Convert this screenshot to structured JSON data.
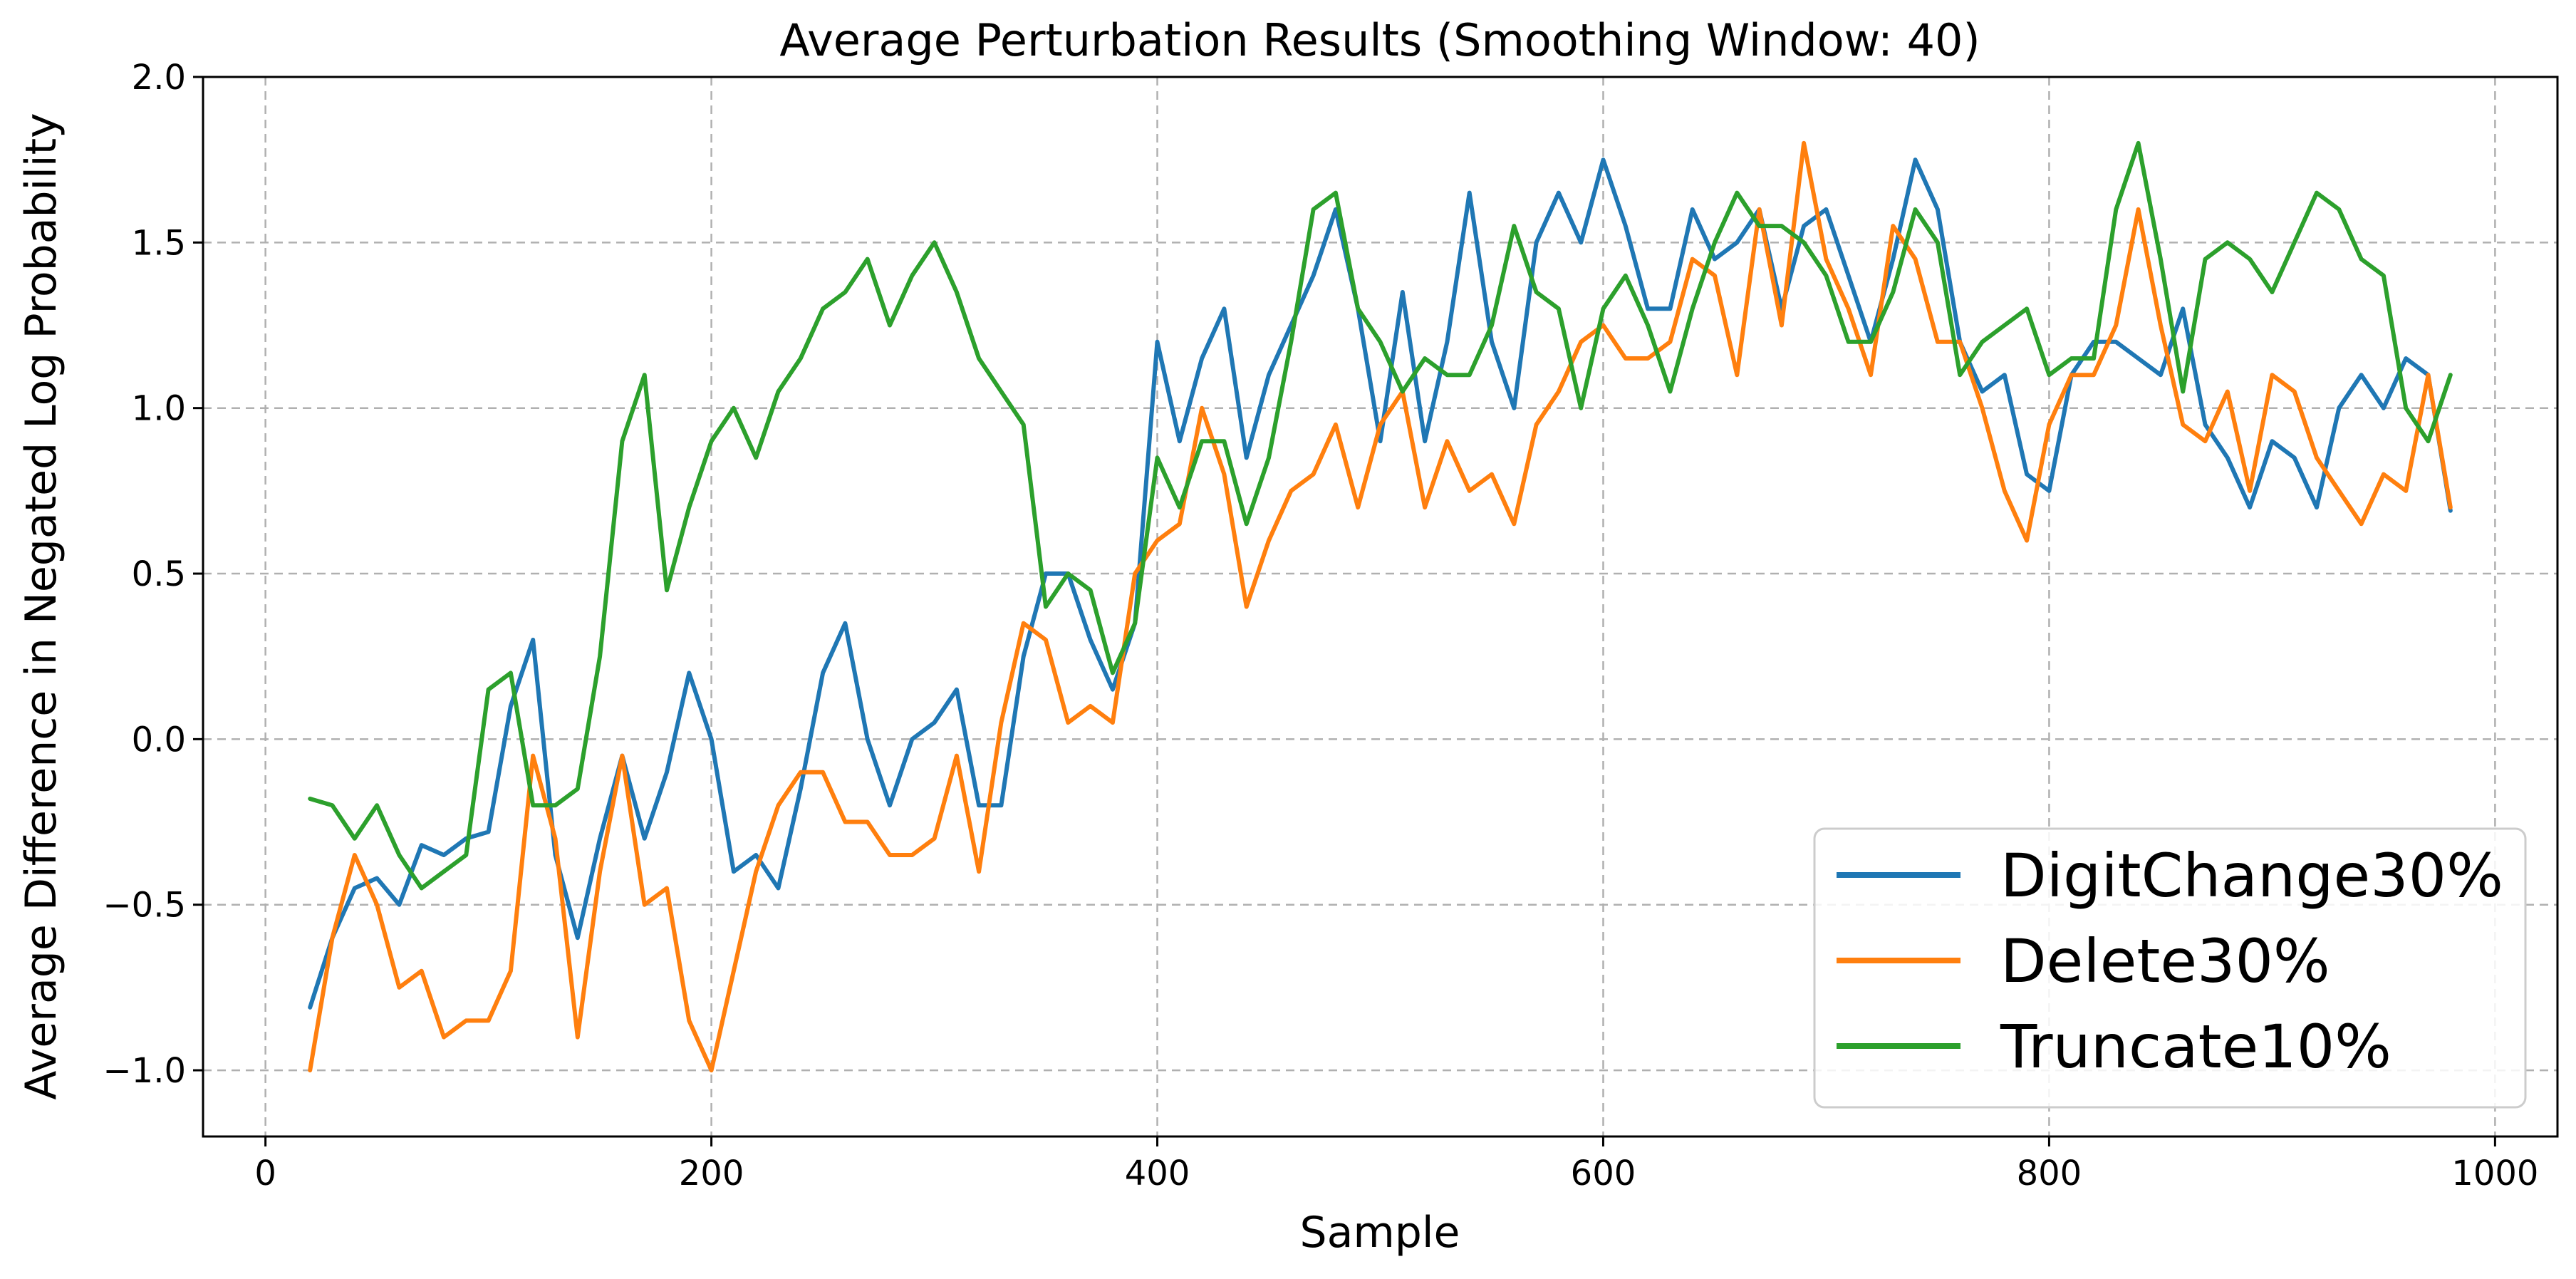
{
  "chart_data": {
    "type": "line",
    "title": "Average Perturbation Results (Smoothing Window: 40)",
    "xlabel": "Sample",
    "ylabel": "Average Difference in Negated Log Probability",
    "xlim": [
      -28,
      1028
    ],
    "ylim": [
      -1.2,
      2.0
    ],
    "xticks": [
      0,
      200,
      400,
      600,
      800,
      1000
    ],
    "xtick_labels": [
      "0",
      "200",
      "400",
      "600",
      "800",
      "1000"
    ],
    "yticks": [
      -1.0,
      -0.5,
      0.0,
      0.5,
      1.0,
      1.5,
      2.0
    ],
    "ytick_labels": [
      "−1.0",
      "−0.5",
      "0.0",
      "0.5",
      "1.0",
      "1.5",
      "2.0"
    ],
    "grid": true,
    "legend_position": "lower-right",
    "x": [
      20,
      30,
      40,
      50,
      60,
      70,
      80,
      90,
      100,
      110,
      120,
      130,
      140,
      150,
      160,
      170,
      180,
      190,
      200,
      210,
      220,
      230,
      240,
      250,
      260,
      270,
      280,
      290,
      300,
      310,
      320,
      330,
      340,
      350,
      360,
      370,
      380,
      390,
      400,
      410,
      420,
      430,
      440,
      450,
      460,
      470,
      480,
      490,
      500,
      510,
      520,
      530,
      540,
      550,
      560,
      570,
      580,
      590,
      600,
      610,
      620,
      630,
      640,
      650,
      660,
      670,
      680,
      690,
      700,
      710,
      720,
      730,
      740,
      750,
      760,
      770,
      780,
      790,
      800,
      810,
      820,
      830,
      840,
      850,
      860,
      870,
      880,
      890,
      900,
      910,
      920,
      930,
      940,
      950,
      960,
      970,
      980
    ],
    "series": [
      {
        "name": "DigitChange30%",
        "color": "#1f77b4",
        "values": [
          -0.81,
          -0.6,
          -0.45,
          -0.42,
          -0.5,
          -0.32,
          -0.35,
          -0.3,
          -0.28,
          0.1,
          0.3,
          -0.35,
          -0.6,
          -0.3,
          -0.05,
          -0.3,
          -0.1,
          0.2,
          0.0,
          -0.4,
          -0.35,
          -0.45,
          -0.15,
          0.2,
          0.35,
          0.0,
          -0.2,
          0.0,
          0.05,
          0.15,
          -0.2,
          -0.2,
          0.25,
          0.5,
          0.5,
          0.3,
          0.15,
          0.35,
          1.2,
          0.9,
          1.15,
          1.3,
          0.85,
          1.1,
          1.25,
          1.4,
          1.6,
          1.3,
          0.9,
          1.35,
          0.9,
          1.2,
          1.65,
          1.2,
          1.0,
          1.5,
          1.65,
          1.5,
          1.75,
          1.55,
          1.3,
          1.3,
          1.6,
          1.45,
          1.5,
          1.6,
          1.3,
          1.55,
          1.6,
          1.4,
          1.2,
          1.45,
          1.75,
          1.6,
          1.2,
          1.05,
          1.1,
          0.8,
          0.75,
          1.1,
          1.2,
          1.2,
          1.15,
          1.1,
          1.3,
          0.95,
          0.85,
          0.7,
          0.9,
          0.85,
          0.7,
          1.0,
          1.1,
          1.0,
          1.15,
          1.1,
          0.69
        ]
      },
      {
        "name": "Delete30%",
        "color": "#ff7f0e",
        "values": [
          -1.0,
          -0.6,
          -0.35,
          -0.5,
          -0.75,
          -0.7,
          -0.9,
          -0.85,
          -0.85,
          -0.7,
          -0.05,
          -0.3,
          -0.9,
          -0.4,
          -0.05,
          -0.5,
          -0.45,
          -0.85,
          -1.0,
          -0.7,
          -0.4,
          -0.2,
          -0.1,
          -0.1,
          -0.25,
          -0.25,
          -0.35,
          -0.35,
          -0.3,
          -0.05,
          -0.4,
          0.05,
          0.35,
          0.3,
          0.05,
          0.1,
          0.05,
          0.5,
          0.6,
          0.65,
          1.0,
          0.8,
          0.4,
          0.6,
          0.75,
          0.8,
          0.95,
          0.7,
          0.95,
          1.05,
          0.7,
          0.9,
          0.75,
          0.8,
          0.65,
          0.95,
          1.05,
          1.2,
          1.25,
          1.15,
          1.15,
          1.2,
          1.45,
          1.4,
          1.1,
          1.6,
          1.25,
          1.8,
          1.45,
          1.3,
          1.1,
          1.55,
          1.45,
          1.2,
          1.2,
          1.0,
          0.75,
          0.6,
          0.95,
          1.1,
          1.1,
          1.25,
          1.6,
          1.25,
          0.95,
          0.9,
          1.05,
          0.75,
          1.1,
          1.05,
          0.85,
          0.75,
          0.65,
          0.8,
          0.75,
          1.1,
          0.7
        ]
      },
      {
        "name": "Truncate10%",
        "color": "#2ca02c",
        "values": [
          -0.18,
          -0.2,
          -0.3,
          -0.2,
          -0.35,
          -0.45,
          -0.4,
          -0.35,
          0.15,
          0.2,
          -0.2,
          -0.2,
          -0.15,
          0.25,
          0.9,
          1.1,
          0.45,
          0.7,
          0.9,
          1.0,
          0.85,
          1.05,
          1.15,
          1.3,
          1.35,
          1.45,
          1.25,
          1.4,
          1.5,
          1.35,
          1.15,
          1.05,
          0.95,
          0.4,
          0.5,
          0.45,
          0.2,
          0.35,
          0.85,
          0.7,
          0.9,
          0.9,
          0.65,
          0.85,
          1.2,
          1.6,
          1.65,
          1.3,
          1.2,
          1.05,
          1.15,
          1.1,
          1.1,
          1.25,
          1.55,
          1.35,
          1.3,
          1.0,
          1.3,
          1.4,
          1.25,
          1.05,
          1.3,
          1.5,
          1.65,
          1.55,
          1.55,
          1.5,
          1.4,
          1.2,
          1.2,
          1.35,
          1.6,
          1.5,
          1.1,
          1.2,
          1.25,
          1.3,
          1.1,
          1.15,
          1.15,
          1.6,
          1.8,
          1.45,
          1.05,
          1.45,
          1.5,
          1.45,
          1.35,
          1.5,
          1.65,
          1.6,
          1.45,
          1.4,
          1.0,
          0.9,
          1.1
        ]
      }
    ]
  }
}
